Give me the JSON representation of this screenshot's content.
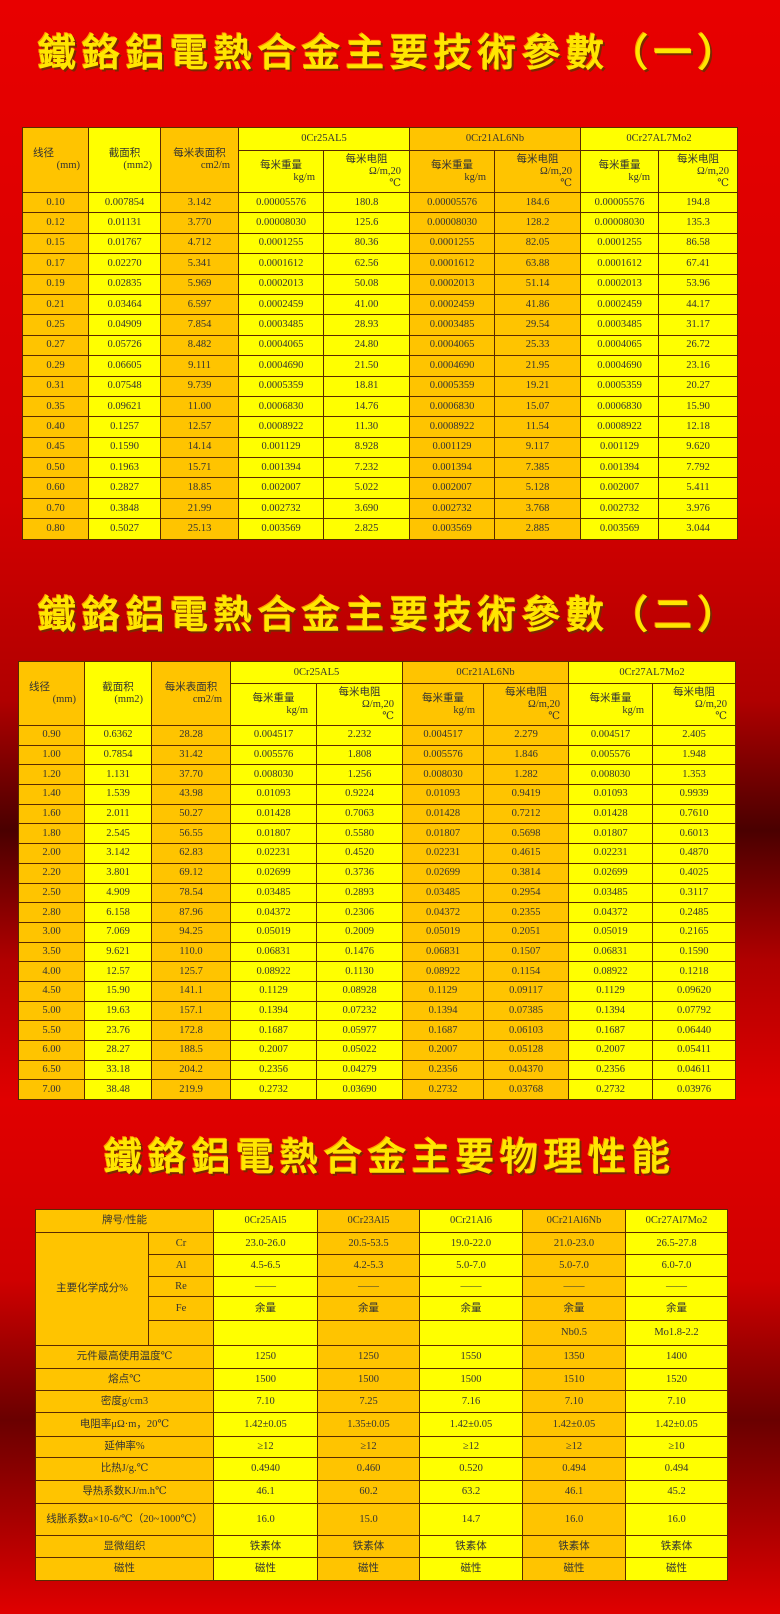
{
  "titles": [
    "鐵鉻鋁電熱合金主要技術參數（一）",
    "鐵鉻鋁電熱合金主要技術參數（二）",
    "鐵鉻鋁電熱合金主要物理性能"
  ],
  "param_header": {
    "diameter": "线径",
    "diameter_unit": "(mm)",
    "area": "截面积",
    "area_unit": "(mm2)",
    "surface": "每米表面积",
    "surface_unit": "cm2/m",
    "alloys": [
      "0Cr25AL5",
      "0Cr21AL6Nb",
      "0Cr27AL7Mo2"
    ],
    "weight": "每米重量",
    "weight_unit": "kg/m",
    "resistance": "每米电阻",
    "resistance_unit": "Ω/m,20",
    "resistance_unit2": "℃"
  },
  "table1": [
    [
      "0.10",
      "0.007854",
      "3.142",
      "0.00005576",
      "180.8",
      "0.00005576",
      "184.6",
      "0.00005576",
      "194.8"
    ],
    [
      "0.12",
      "0.01131",
      "3.770",
      "0.00008030",
      "125.6",
      "0.00008030",
      "128.2",
      "0.00008030",
      "135.3"
    ],
    [
      "0.15",
      "0.01767",
      "4.712",
      "0.0001255",
      "80.36",
      "0.0001255",
      "82.05",
      "0.0001255",
      "86.58"
    ],
    [
      "0.17",
      "0.02270",
      "5.341",
      "0.0001612",
      "62.56",
      "0.0001612",
      "63.88",
      "0.0001612",
      "67.41"
    ],
    [
      "0.19",
      "0.02835",
      "5.969",
      "0.0002013",
      "50.08",
      "0.0002013",
      "51.14",
      "0.0002013",
      "53.96"
    ],
    [
      "0.21",
      "0.03464",
      "6.597",
      "0.0002459",
      "41.00",
      "0.0002459",
      "41.86",
      "0.0002459",
      "44.17"
    ],
    [
      "0.25",
      "0.04909",
      "7.854",
      "0.0003485",
      "28.93",
      "0.0003485",
      "29.54",
      "0.0003485",
      "31.17"
    ],
    [
      "0.27",
      "0.05726",
      "8.482",
      "0.0004065",
      "24.80",
      "0.0004065",
      "25.33",
      "0.0004065",
      "26.72"
    ],
    [
      "0.29",
      "0.06605",
      "9.111",
      "0.0004690",
      "21.50",
      "0.0004690",
      "21.95",
      "0.0004690",
      "23.16"
    ],
    [
      "0.31",
      "0.07548",
      "9.739",
      "0.0005359",
      "18.81",
      "0.0005359",
      "19.21",
      "0.0005359",
      "20.27"
    ],
    [
      "0.35",
      "0.09621",
      "11.00",
      "0.0006830",
      "14.76",
      "0.0006830",
      "15.07",
      "0.0006830",
      "15.90"
    ],
    [
      "0.40",
      "0.1257",
      "12.57",
      "0.0008922",
      "11.30",
      "0.0008922",
      "11.54",
      "0.0008922",
      "12.18"
    ],
    [
      "0.45",
      "0.1590",
      "14.14",
      "0.001129",
      "8.928",
      "0.001129",
      "9.117",
      "0.001129",
      "9.620"
    ],
    [
      "0.50",
      "0.1963",
      "15.71",
      "0.001394",
      "7.232",
      "0.001394",
      "7.385",
      "0.001394",
      "7.792"
    ],
    [
      "0.60",
      "0.2827",
      "18.85",
      "0.002007",
      "5.022",
      "0.002007",
      "5.128",
      "0.002007",
      "5.411"
    ],
    [
      "0.70",
      "0.3848",
      "21.99",
      "0.002732",
      "3.690",
      "0.002732",
      "3.768",
      "0.002732",
      "3.976"
    ],
    [
      "0.80",
      "0.5027",
      "25.13",
      "0.003569",
      "2.825",
      "0.003569",
      "2.885",
      "0.003569",
      "3.044"
    ]
  ],
  "table2": [
    [
      "0.90",
      "0.6362",
      "28.28",
      "0.004517",
      "2.232",
      "0.004517",
      "2.279",
      "0.004517",
      "2.405"
    ],
    [
      "1.00",
      "0.7854",
      "31.42",
      "0.005576",
      "1.808",
      "0.005576",
      "1.846",
      "0.005576",
      "1.948"
    ],
    [
      "1.20",
      "1.131",
      "37.70",
      "0.008030",
      "1.256",
      "0.008030",
      "1.282",
      "0.008030",
      "1.353"
    ],
    [
      "1.40",
      "1.539",
      "43.98",
      "0.01093",
      "0.9224",
      "0.01093",
      "0.9419",
      "0.01093",
      "0.9939"
    ],
    [
      "1.60",
      "2.011",
      "50.27",
      "0.01428",
      "0.7063",
      "0.01428",
      "0.7212",
      "0.01428",
      "0.7610"
    ],
    [
      "1.80",
      "2.545",
      "56.55",
      "0.01807",
      "0.5580",
      "0.01807",
      "0.5698",
      "0.01807",
      "0.6013"
    ],
    [
      "2.00",
      "3.142",
      "62.83",
      "0.02231",
      "0.4520",
      "0.02231",
      "0.4615",
      "0.02231",
      "0.4870"
    ],
    [
      "2.20",
      "3.801",
      "69.12",
      "0.02699",
      "0.3736",
      "0.02699",
      "0.3814",
      "0.02699",
      "0.4025"
    ],
    [
      "2.50",
      "4.909",
      "78.54",
      "0.03485",
      "0.2893",
      "0.03485",
      "0.2954",
      "0.03485",
      "0.3117"
    ],
    [
      "2.80",
      "6.158",
      "87.96",
      "0.04372",
      "0.2306",
      "0.04372",
      "0.2355",
      "0.04372",
      "0.2485"
    ],
    [
      "3.00",
      "7.069",
      "94.25",
      "0.05019",
      "0.2009",
      "0.05019",
      "0.2051",
      "0.05019",
      "0.2165"
    ],
    [
      "3.50",
      "9.621",
      "110.0",
      "0.06831",
      "0.1476",
      "0.06831",
      "0.1507",
      "0.06831",
      "0.1590"
    ],
    [
      "4.00",
      "12.57",
      "125.7",
      "0.08922",
      "0.1130",
      "0.08922",
      "0.1154",
      "0.08922",
      "0.1218"
    ],
    [
      "4.50",
      "15.90",
      "141.1",
      "0.1129",
      "0.08928",
      "0.1129",
      "0.09117",
      "0.1129",
      "0.09620"
    ],
    [
      "5.00",
      "19.63",
      "157.1",
      "0.1394",
      "0.07232",
      "0.1394",
      "0.07385",
      "0.1394",
      "0.07792"
    ],
    [
      "5.50",
      "23.76",
      "172.8",
      "0.1687",
      "0.05977",
      "0.1687",
      "0.06103",
      "0.1687",
      "0.06440"
    ],
    [
      "6.00",
      "28.27",
      "188.5",
      "0.2007",
      "0.05022",
      "0.2007",
      "0.05128",
      "0.2007",
      "0.05411"
    ],
    [
      "6.50",
      "33.18",
      "204.2",
      "0.2356",
      "0.04279",
      "0.2356",
      "0.04370",
      "0.2356",
      "0.04611"
    ],
    [
      "7.00",
      "38.48",
      "219.9",
      "0.2732",
      "0.03690",
      "0.2732",
      "0.03768",
      "0.2732",
      "0.03976"
    ]
  ],
  "table3": {
    "corner": "牌号/性能",
    "grades": [
      "0Cr25Al5",
      "0Cr23Al5",
      "0Cr21Al6",
      "0Cr21Al6Nb",
      "0Cr27Al7Mo2"
    ],
    "composition_label": "主要化学成分%",
    "composition": [
      {
        "el": "Cr",
        "v": [
          "23.0-26.0",
          "20.5-53.5",
          "19.0-22.0",
          "21.0-23.0",
          "26.5-27.8"
        ]
      },
      {
        "el": "Al",
        "v": [
          "4.5-6.5",
          "4.2-5.3",
          "5.0-7.0",
          "5.0-7.0",
          "6.0-7.0"
        ]
      },
      {
        "el": "Re",
        "v": [
          "——",
          "——",
          "——",
          "——",
          "——"
        ]
      },
      {
        "el": "Fe",
        "v": [
          "余量",
          "余量",
          "余量",
          "余量",
          "余量"
        ]
      },
      {
        "el": "",
        "v": [
          "",
          "",
          "",
          "Nb0.5",
          "Mo1.8-2.2"
        ]
      }
    ],
    "properties": [
      {
        "name": "元件最高使用温度℃",
        "v": [
          "1250",
          "1250",
          "1550",
          "1350",
          "1400"
        ]
      },
      {
        "name": "熔点℃",
        "v": [
          "1500",
          "1500",
          "1500",
          "1510",
          "1520"
        ]
      },
      {
        "name": "密度g/cm3",
        "v": [
          "7.10",
          "7.25",
          "7.16",
          "7.10",
          "7.10"
        ]
      },
      {
        "name": "电阻率μΩ·m，20℃",
        "v": [
          "1.42±0.05",
          "1.35±0.05",
          "1.42±0.05",
          "1.42±0.05",
          "1.42±0.05"
        ]
      },
      {
        "name": "延伸率%",
        "v": [
          "≥12",
          "≥12",
          "≥12",
          "≥12",
          "≥10"
        ]
      },
      {
        "name": "比热J/g.℃",
        "v": [
          "0.4940",
          "0.460",
          "0.520",
          "0.494",
          "0.494"
        ]
      },
      {
        "name": "导热系数KJ/m.h℃",
        "v": [
          "46.1",
          "60.2",
          "63.2",
          "46.1",
          "45.2"
        ]
      },
      {
        "name": "线胀系数a×10-6/℃（20~1000℃）",
        "v": [
          "16.0",
          "15.0",
          "14.7",
          "16.0",
          "16.0"
        ]
      },
      {
        "name": "显微组织",
        "v": [
          "铁素体",
          "铁素体",
          "铁素体",
          "铁素体",
          "铁素体"
        ]
      },
      {
        "name": "磁性",
        "v": [
          "磁性",
          "磁性",
          "磁性",
          "磁性",
          "磁性"
        ]
      }
    ]
  },
  "colors": {
    "background": "#e00000",
    "title": "#ffe600",
    "cell_yellow": "#ffff00",
    "cell_orange": "#ffc400"
  }
}
